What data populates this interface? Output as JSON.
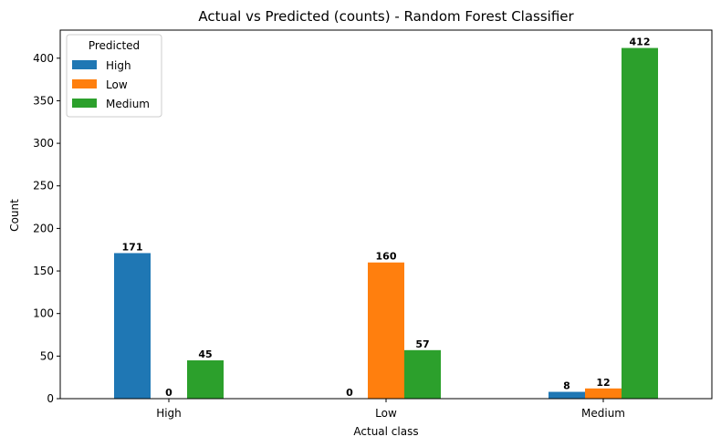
{
  "chart_data": {
    "type": "bar",
    "title": "Actual vs Predicted (counts) - Random Forest Classifier",
    "xlabel": "Actual class",
    "ylabel": "Count",
    "categories": [
      "High",
      "Low",
      "Medium"
    ],
    "series": [
      {
        "name": "High",
        "color": "#1f77b4",
        "values": [
          171,
          0,
          8
        ]
      },
      {
        "name": "Low",
        "color": "#ff7f0e",
        "values": [
          0,
          160,
          12
        ]
      },
      {
        "name": "Medium",
        "color": "#2ca02c",
        "values": [
          45,
          57,
          412
        ]
      }
    ],
    "ylim": [
      0,
      433
    ],
    "yticks": [
      0,
      50,
      100,
      150,
      200,
      250,
      300,
      350,
      400
    ],
    "legend": {
      "title": "Predicted",
      "placement": "top-left"
    },
    "grid": false
  }
}
